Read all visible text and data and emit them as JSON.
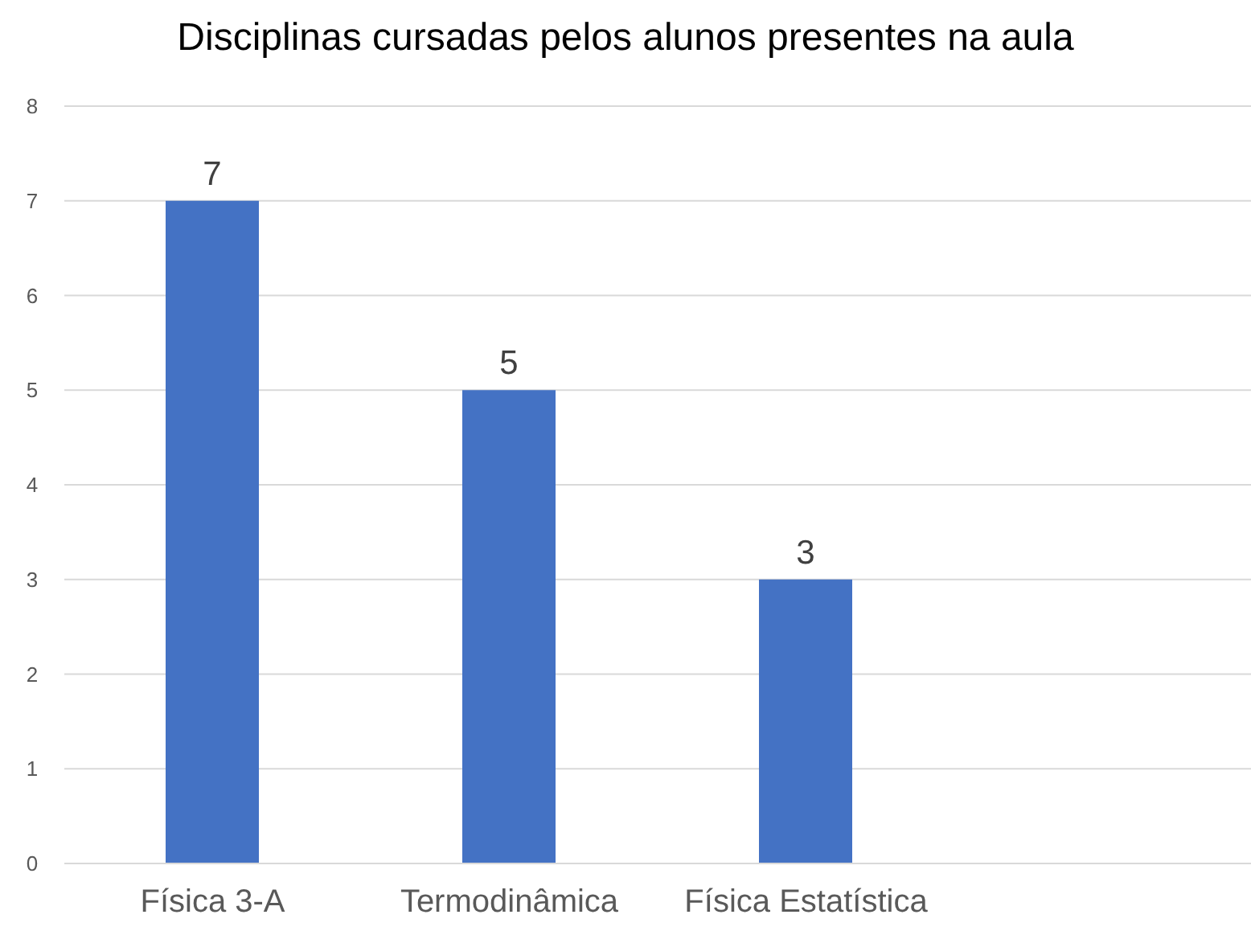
{
  "chart_data": {
    "type": "bar",
    "title": "Disciplinas cursadas pelos alunos presentes na aula",
    "categories": [
      "Física 3-A",
      "Termodinâmica",
      "Física Estatística",
      null
    ],
    "values": [
      7,
      5,
      3,
      null
    ],
    "color": "#4472c4",
    "ylim": [
      0,
      8
    ],
    "yticks": [
      0,
      1,
      2,
      3,
      4,
      5,
      6,
      7,
      8
    ],
    "grid": "y",
    "data_labels": true
  }
}
